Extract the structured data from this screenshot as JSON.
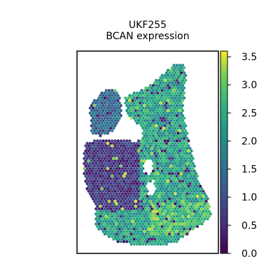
{
  "chart_data": {
    "type": "heatmap",
    "title": "UKF255",
    "subtitle": "BCAN expression",
    "xlabel": "",
    "ylabel": "",
    "colorbar": {
      "cmap": "viridis",
      "vmin": 0.0,
      "vmax": 3.6,
      "ticks": [
        0.0,
        0.5,
        1.0,
        1.5,
        2.0,
        2.5,
        3.0,
        3.5
      ],
      "tick_labels": [
        "0.0",
        "0.5",
        "1.0",
        "1.5",
        "2.0",
        "2.5",
        "3.0",
        "3.5"
      ]
    },
    "grid": false,
    "legend": "colorbar-right",
    "spot_layout": "hexagonal tissue spots, expression mostly 1.5-3.0 in the lower-right region, 0-1 in the left-center cluster"
  }
}
